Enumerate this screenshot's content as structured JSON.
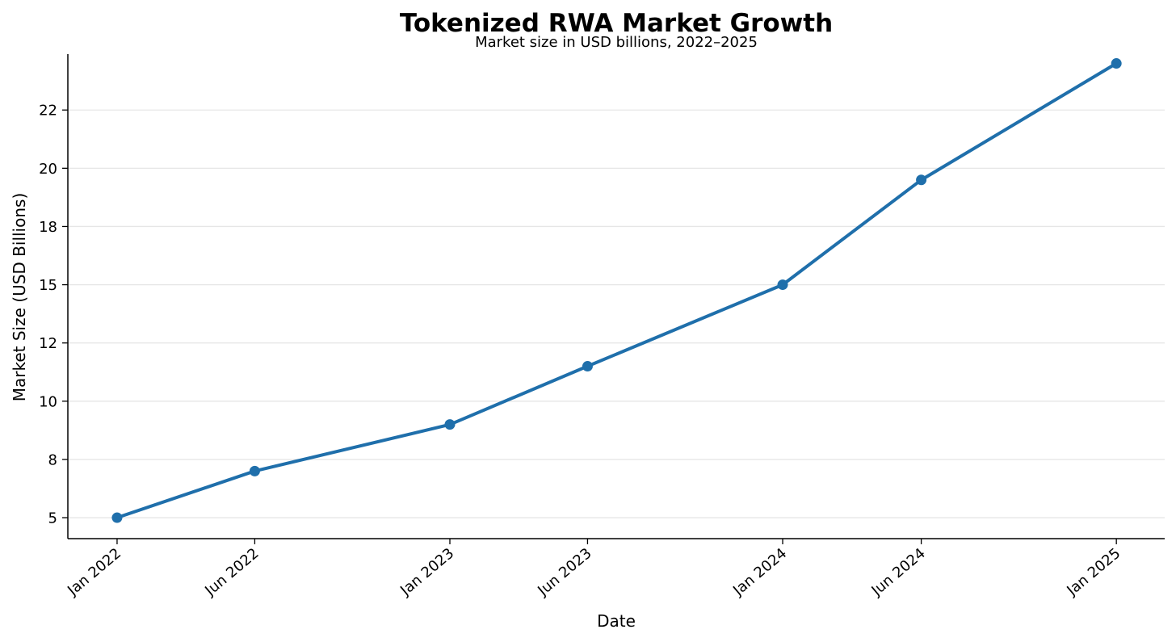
{
  "chart_data": {
    "type": "line",
    "title": "Tokenized RWA Market Growth",
    "subtitle": "Market size in USD billions, 2022–2025",
    "xlabel": "Date",
    "ylabel": "Market Size (USD Billions)",
    "x_axis_type": "date",
    "x": [
      "2022-01-01",
      "2022-06-01",
      "2023-01-01",
      "2023-06-01",
      "2024-01-01",
      "2024-06-01",
      "2025-01-01"
    ],
    "x_ticks": [
      {
        "date": "2022-01-01",
        "label": "Jan 2022"
      },
      {
        "date": "2022-06-01",
        "label": "Jun 2022"
      },
      {
        "date": "2023-01-01",
        "label": "Jan 2023"
      },
      {
        "date": "2023-06-01",
        "label": "Jun 2023"
      },
      {
        "date": "2024-01-01",
        "label": "Jan 2024"
      },
      {
        "date": "2024-06-01",
        "label": "Jun 2024"
      },
      {
        "date": "2025-01-01",
        "label": "Jan 2025"
      }
    ],
    "y_ticks": [
      {
        "value": 5,
        "label": "5"
      },
      {
        "value": 7.5,
        "label": "8"
      },
      {
        "value": 10,
        "label": "10"
      },
      {
        "value": 12.5,
        "label": "12"
      },
      {
        "value": 15,
        "label": "15"
      },
      {
        "value": 17.5,
        "label": "18"
      },
      {
        "value": 20,
        "label": "20"
      },
      {
        "value": 22.5,
        "label": "22"
      }
    ],
    "ylim": [
      4.1,
      24.9
    ],
    "xlim": [
      "2021-11-08",
      "2025-02-23"
    ],
    "series": [
      {
        "values": [
          5.0,
          7.0,
          9.0,
          11.5,
          15.0,
          19.5,
          24.5
        ],
        "color": "#1f6fab",
        "marker": "circle"
      }
    ],
    "grid": {
      "horizontal": true,
      "vertical": false,
      "color": "#e6e6e6"
    },
    "spines": [
      "left",
      "bottom"
    ],
    "legend": "none"
  }
}
